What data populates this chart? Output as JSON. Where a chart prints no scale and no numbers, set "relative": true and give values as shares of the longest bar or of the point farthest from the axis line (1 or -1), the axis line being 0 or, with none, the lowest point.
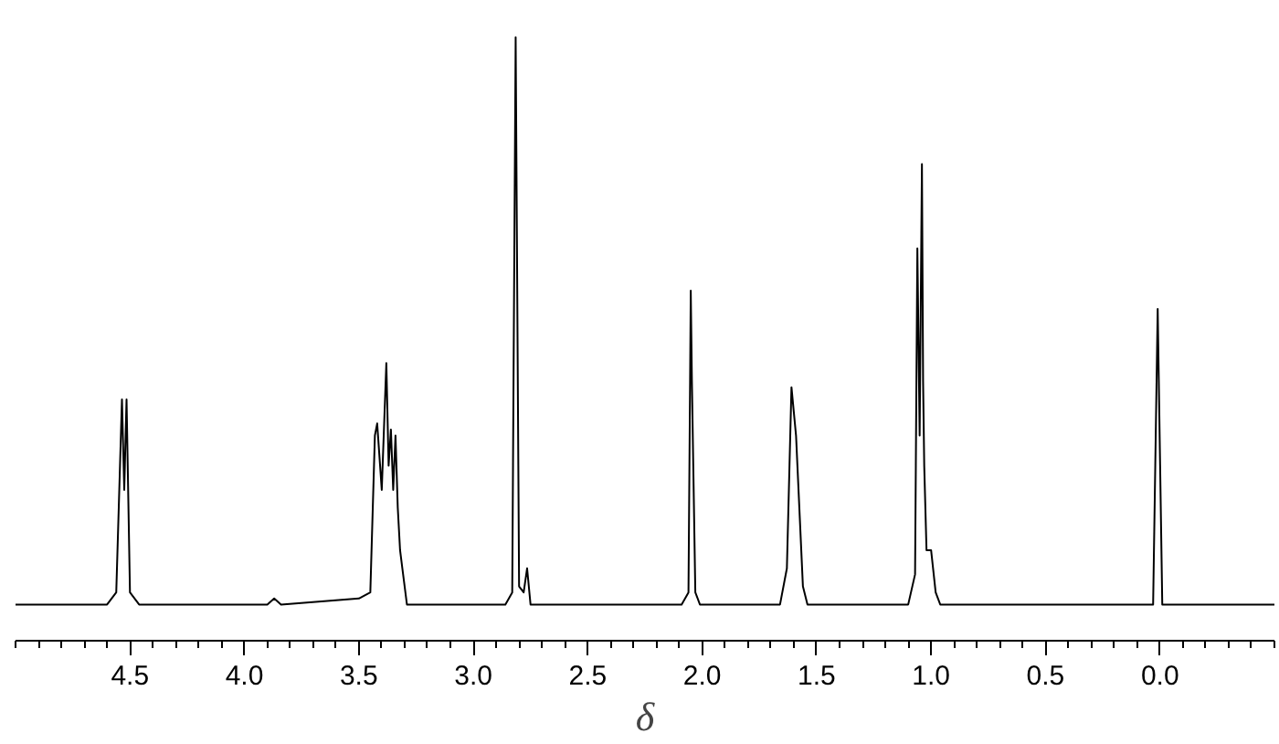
{
  "chart_data": {
    "type": "line",
    "relative": true,
    "xlabel": "δ",
    "xlim": [
      5.0,
      -0.5
    ],
    "xticks": [
      4.5,
      {
        "value": 4,
        "label": "4.0"
      },
      3.5,
      {
        "value": 3,
        "label": "3.0"
      },
      2.5,
      {
        "value": 2,
        "label": "2.0"
      },
      1.5,
      {
        "value": 1,
        "label": "1.0"
      },
      0.5,
      {
        "value": 0,
        "label": "0.0"
      }
    ],
    "grid": false,
    "marker": "none",
    "line_style": "solid",
    "tick_labels": "x",
    "series": [
      {
        "color": "#000000",
        "x": [
          5.0,
          4.6,
          4.56,
          4.535,
          4.525,
          4.515,
          4.5,
          4.46,
          3.9,
          3.87,
          3.84,
          3.5,
          3.45,
          3.43,
          3.42,
          3.4,
          3.38,
          3.37,
          3.36,
          3.35,
          3.34,
          3.33,
          3.32,
          3.31,
          3.29,
          2.86,
          2.83,
          2.815,
          2.8,
          2.78,
          2.765,
          2.75,
          2.09,
          2.06,
          2.05,
          2.045,
          2.03,
          2.01,
          1.66,
          1.63,
          1.61,
          1.59,
          1.56,
          1.54,
          1.1,
          1.07,
          1.06,
          1.05,
          1.04,
          1.035,
          1.03,
          1.02,
          1.0,
          0.98,
          0.96,
          0.03,
          0.01,
          -0.01,
          -0.5
        ],
        "values": [
          0.06,
          0.06,
          0.08,
          0.4,
          0.25,
          0.4,
          0.08,
          0.06,
          0.06,
          0.07,
          0.06,
          0.07,
          0.08,
          0.34,
          0.36,
          0.25,
          0.46,
          0.29,
          0.35,
          0.25,
          0.34,
          0.22,
          0.15,
          0.12,
          0.06,
          0.06,
          0.08,
          1,
          0.09,
          0.08,
          0.12,
          0.06,
          0.06,
          0.08,
          0.58,
          0.43,
          0.08,
          0.06,
          0.06,
          0.12,
          0.42,
          0.34,
          0.09,
          0.06,
          0.06,
          0.11,
          0.65,
          0.34,
          0.79,
          0.43,
          0.29,
          0.15,
          0.15,
          0.08,
          0.06,
          0.06,
          0.55,
          0.06,
          0.06
        ]
      }
    ]
  }
}
